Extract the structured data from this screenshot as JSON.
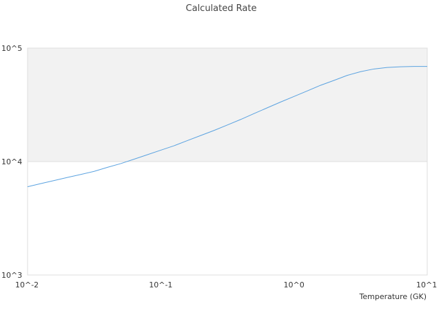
{
  "chart_data": {
    "type": "line",
    "title": "Calculated Rate",
    "xlabel": "Temperature (GK)",
    "ylabel": "",
    "xscale": "log",
    "yscale": "log",
    "xlim": [
      0.01,
      10
    ],
    "ylim": [
      1000,
      100000
    ],
    "x_ticks": [
      {
        "value": 0.01,
        "label": "10^-2"
      },
      {
        "value": 0.1,
        "label": "10^-1"
      },
      {
        "value": 1,
        "label": "10^0"
      },
      {
        "value": 10,
        "label": "10^1"
      }
    ],
    "y_ticks": [
      {
        "value": 1000,
        "label": "10^3"
      },
      {
        "value": 10000,
        "label": "10^4"
      },
      {
        "value": 100000,
        "label": "10^5"
      }
    ],
    "grid": true,
    "shaded_band": {
      "y_from": 10000,
      "y_to": 100000,
      "color": "#f2f2f2"
    },
    "series": [
      {
        "color": "#5aa2e0",
        "x": [
          0.01,
          0.0126,
          0.0158,
          0.02,
          0.0251,
          0.0316,
          0.0398,
          0.0501,
          0.0631,
          0.0794,
          0.1,
          0.126,
          0.158,
          0.2,
          0.251,
          0.316,
          0.398,
          0.501,
          0.631,
          0.794,
          1.0,
          1.26,
          1.58,
          2.0,
          2.51,
          3.16,
          3.98,
          5.01,
          6.31,
          7.94,
          10.0
        ],
        "y": [
          6000,
          6400,
          6800,
          7250,
          7700,
          8200,
          8900,
          9600,
          10500,
          11500,
          12600,
          13800,
          15300,
          17000,
          18800,
          21000,
          23500,
          26500,
          29800,
          33500,
          37500,
          42000,
          47000,
          52000,
          57500,
          62000,
          65500,
          67500,
          68500,
          69000,
          69000
        ]
      }
    ]
  }
}
